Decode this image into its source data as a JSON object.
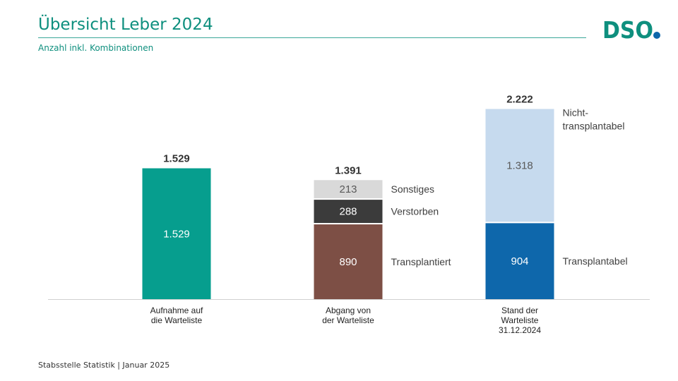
{
  "header": {
    "title": "Übersicht Leber 2024",
    "subtitle": "Anzahl inkl. Kombinationen",
    "logo_text": "DSO"
  },
  "footer": {
    "text": "Stabsstelle Statistik | Januar 2025"
  },
  "colors": {
    "title": "#0e8f7e",
    "aufnahme": "#069e8e",
    "transplantiert": "#7d4f45",
    "verstorben": "#3b3b3b",
    "sonstiges": "#d9d9d9",
    "transplantabel": "#0e67ab",
    "nicht_transplantabel": "#c6daee",
    "logo_green": "#0e8f7e",
    "logo_blue": "#0e67ab"
  },
  "chart_data": {
    "type": "bar",
    "stacked": true,
    "ylim": [
      0,
      2300
    ],
    "grid": false,
    "categories": [
      [
        "Aufnahme auf",
        "die Warteliste"
      ],
      [
        "Abgang von",
        "der Warteliste"
      ],
      [
        "Stand der",
        "Warteliste",
        "31.12.2024"
      ]
    ],
    "bars": [
      {
        "total": 1529,
        "total_label": "1.529",
        "segments": [
          {
            "value": 1529,
            "label": "1.529",
            "color": "#069e8e",
            "text_color": "#ffffff"
          }
        ]
      },
      {
        "total": 1391,
        "total_label": "1.391",
        "segments": [
          {
            "value": 890,
            "label": "890",
            "name": "Transplantiert",
            "color": "#7d4f45",
            "text_color": "#ffffff"
          },
          {
            "value": 288,
            "label": "288",
            "name": "Verstorben",
            "color": "#3b3b3b",
            "text_color": "#ffffff"
          },
          {
            "value": 213,
            "label": "213",
            "name": "Sonstiges",
            "color": "#d9d9d9",
            "text_color": "#595959"
          }
        ]
      },
      {
        "total": 2222,
        "total_label": "2.222",
        "segments": [
          {
            "value": 904,
            "label": "904",
            "name": "Transplantabel",
            "color": "#0e67ab",
            "text_color": "#ffffff"
          },
          {
            "value": 1318,
            "label": "1.318",
            "name": [
              "Nicht-",
              "transplantabel"
            ],
            "color": "#c6daee",
            "text_color": "#595959"
          }
        ]
      }
    ]
  }
}
